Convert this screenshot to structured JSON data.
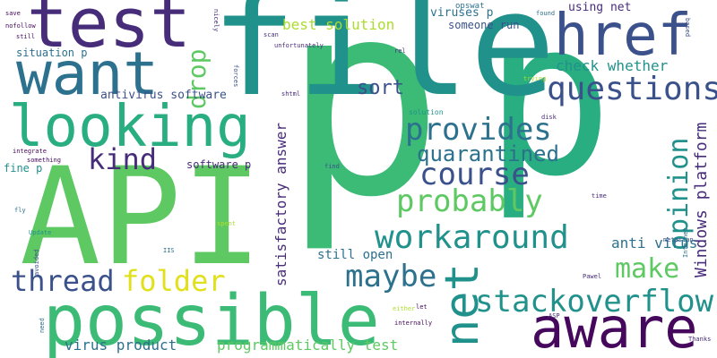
{
  "colors": {
    "darkPurple": "#46085c",
    "purple": "#472c7a",
    "indigo": "#3b518b",
    "blue": "#2c718e",
    "teal": "#21918c",
    "seaGreen": "#28ae80",
    "green": "#3bbb75",
    "lightGreen": "#5ec962",
    "lime": "#addc30",
    "yellow": "#e0e11c"
  },
  "words": [
    "p",
    "file",
    "API",
    "possible",
    "test",
    "href",
    "want",
    "looking",
    "aware",
    "questions",
    "net",
    "workaround",
    "stackoverflow",
    "course",
    "provides",
    "probably",
    "maybe",
    "folder",
    "thread",
    "quarantined",
    "opinion",
    "kind",
    "make",
    "drop",
    "Windows platform",
    "sort",
    "best solution",
    "satisfactory answer",
    "programmatically test",
    "virus product",
    "anti virus",
    "check whether",
    "still open",
    "antivirus software",
    "viruses p",
    "using net",
    "someone run",
    "software p",
    "situation p",
    "fine p",
    "opswat",
    "nicely",
    "found",
    "based",
    "save",
    "nofollow",
    "still",
    "solution",
    "disk",
    "trying",
    "metascan",
    "time",
    "Pawel",
    "ASP",
    "Thanks",
    "either",
    "internally",
    "let",
    "Internet",
    "IIS",
    "need",
    "Update",
    "fly",
    "spent",
    "find",
    "integrate",
    "something",
    "rel",
    "unfortunately",
    "scan",
    "shtml",
    "forces",
    "avoided"
  ]
}
